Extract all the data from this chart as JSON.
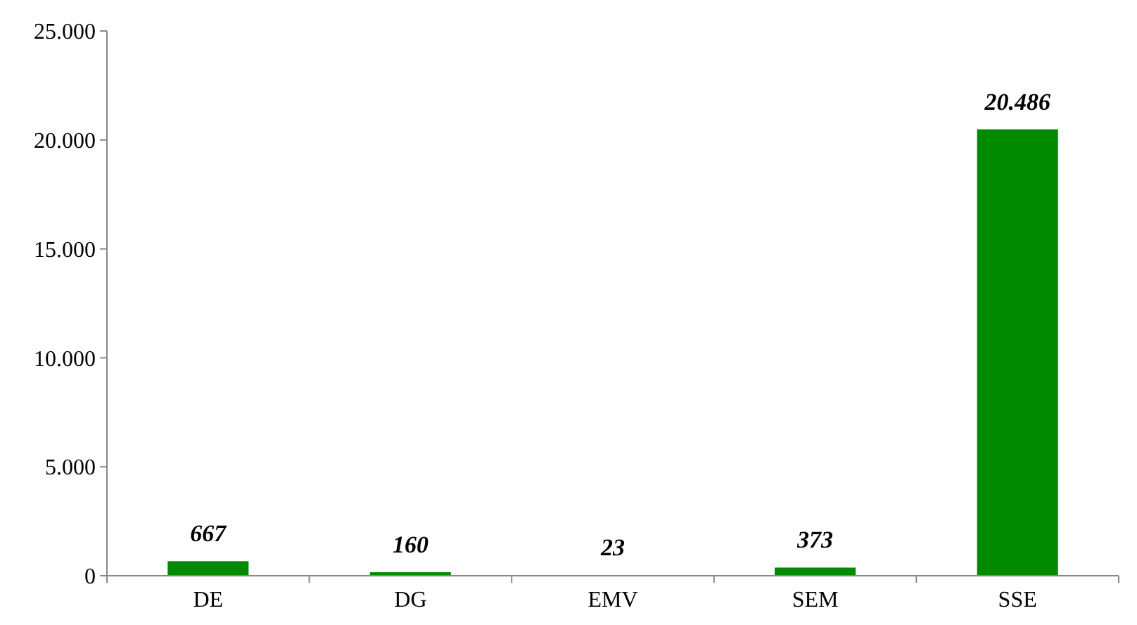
{
  "chart_data": {
    "type": "bar",
    "categories": [
      "DE",
      "DG",
      "EMV",
      "SEM",
      "SSE"
    ],
    "values": [
      667,
      160,
      23,
      373,
      20486
    ],
    "value_labels": [
      "667",
      "160",
      "23",
      "373",
      "20.486"
    ],
    "color": "#008a00",
    "ylim": [
      0,
      25000
    ],
    "yticks": [
      {
        "value": 0,
        "label": "0"
      },
      {
        "value": 5000,
        "label": "5.000"
      },
      {
        "value": 10000,
        "label": "10.000"
      },
      {
        "value": 15000,
        "label": "15.000"
      },
      {
        "value": 20000,
        "label": "20.000"
      },
      {
        "value": 25000,
        "label": "25.000"
      }
    ],
    "grid": false
  }
}
